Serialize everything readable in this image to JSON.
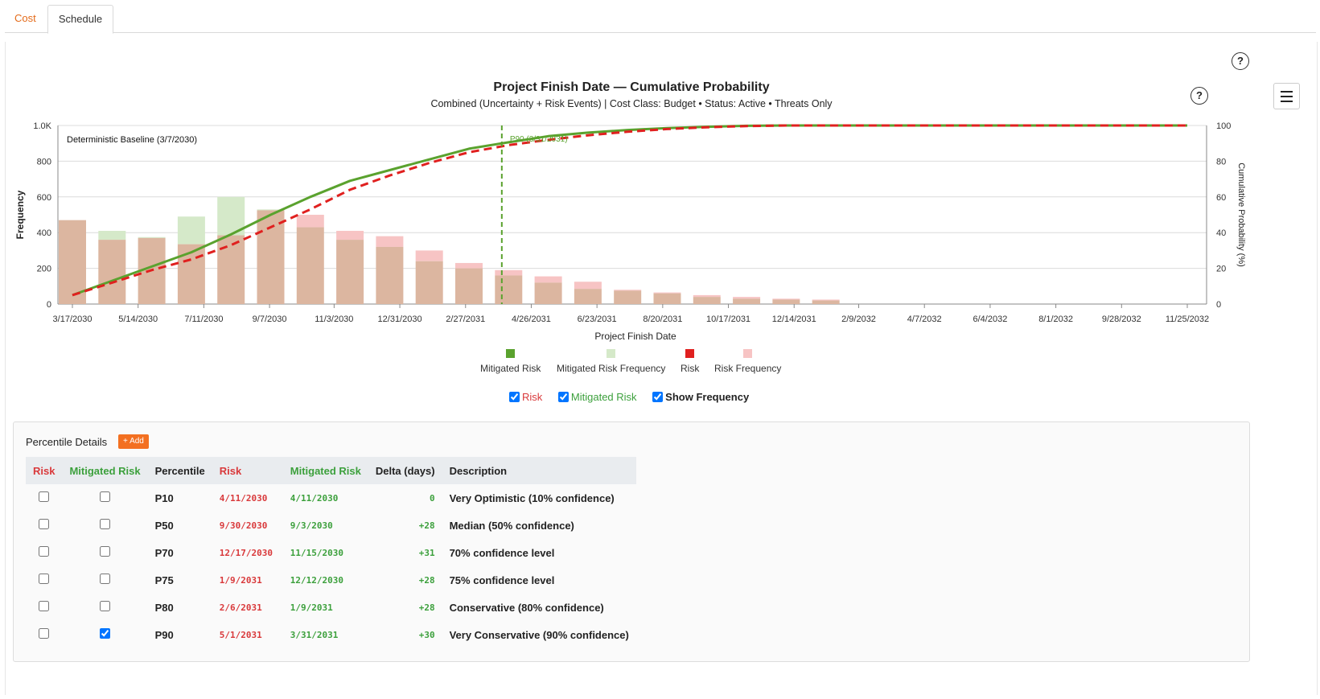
{
  "tabs": [
    {
      "label": "Cost",
      "active": false
    },
    {
      "label": "Schedule",
      "active": true
    }
  ],
  "help_label": "?",
  "chart": {
    "title": "Project Finish Date — Cumulative Probability",
    "subtitle": "Combined (Uncertainty + Risk Events) | Cost Class: Budget  •  Status: Active  •  Threats Only"
  },
  "chart_data": {
    "type": "bar",
    "title": "Project Finish Date — Cumulative Probability",
    "subtitle": "Combined (Uncertainty + Risk Events) | Cost Class: Budget  •  Status: Active  •  Threats Only",
    "xlabel": "Project Finish Date",
    "ylabel": "Frequency",
    "y2label": "Cumulative Probability (%)",
    "ylim": [
      0,
      1000
    ],
    "y2lim": [
      0,
      100
    ],
    "y_ticks": [
      "0",
      "200",
      "400",
      "600",
      "800",
      "1.0K"
    ],
    "y2_ticks": [
      "0",
      "20",
      "40",
      "60",
      "80",
      "100"
    ],
    "x_range": [
      "3/17/2030",
      "11/25/2032"
    ],
    "x_ticks": [
      "3/17/2030",
      "5/14/2030",
      "7/11/2030",
      "9/7/2030",
      "11/3/2030",
      "12/31/2030",
      "2/27/2031",
      "4/26/2031",
      "6/23/2031",
      "8/20/2031",
      "10/17/2031",
      "12/14/2031",
      "2/9/2032",
      "4/7/2032",
      "6/4/2032",
      "8/1/2032",
      "9/28/2032",
      "11/25/2032"
    ],
    "grid": true,
    "bin_dates": [
      "3/17/2030",
      "4/21/2030",
      "5/26/2030",
      "6/30/2030",
      "8/4/2030",
      "9/8/2030",
      "10/13/2030",
      "11/17/2030",
      "12/22/2030",
      "1/26/2031",
      "3/2/2031",
      "4/6/2031",
      "5/11/2031",
      "6/15/2031",
      "7/20/2031",
      "8/24/2031",
      "9/28/2031",
      "11/2/2031",
      "12/7/2031",
      "1/11/2032"
    ],
    "series": [
      {
        "name": "Mitigated Risk",
        "kind": "line",
        "color": "#5aa22e",
        "x": [
          "3/17/2030",
          "4/21/2030",
          "5/26/2030",
          "6/30/2030",
          "8/4/2030",
          "9/8/2030",
          "10/13/2030",
          "11/17/2030",
          "12/22/2030",
          "1/26/2031",
          "3/2/2031",
          "3/31/2031",
          "5/11/2031",
          "6/15/2031",
          "7/20/2031",
          "8/24/2031",
          "9/28/2031",
          "11/2/2031",
          "12/7/2031",
          "11/25/2032"
        ],
        "values": [
          5,
          13,
          21,
          29,
          39,
          50,
          60,
          69,
          75,
          81,
          87,
          90,
          94,
          96,
          97.5,
          98.5,
          99.3,
          99.8,
          100,
          100
        ]
      },
      {
        "name": "Mitigated Risk Frequency",
        "kind": "bar",
        "color": "#d5e9c9",
        "values": [
          470,
          410,
          375,
          490,
          600,
          530,
          430,
          360,
          320,
          240,
          200,
          160,
          120,
          85,
          75,
          60,
          40,
          30,
          25,
          20
        ]
      },
      {
        "name": "Risk",
        "kind": "line",
        "color": "#e0201f",
        "x": [
          "3/17/2030",
          "4/21/2030",
          "5/26/2030",
          "6/30/2030",
          "8/4/2030",
          "9/8/2030",
          "10/13/2030",
          "11/17/2030",
          "12/22/2030",
          "1/26/2031",
          "3/2/2031",
          "4/6/2031",
          "5/11/2031",
          "6/15/2031",
          "7/20/2031",
          "8/24/2031",
          "9/28/2031",
          "11/2/2031",
          "12/7/2031",
          "11/25/2032"
        ],
        "values": [
          5,
          12,
          19,
          25,
          33,
          43,
          53,
          64,
          72,
          79,
          85,
          89,
          92,
          94.5,
          96.5,
          98,
          99,
          99.7,
          100,
          100
        ]
      },
      {
        "name": "Risk Frequency",
        "kind": "bar",
        "color": "#f7c4c4",
        "values": [
          470,
          360,
          370,
          335,
          385,
          525,
          500,
          410,
          380,
          300,
          230,
          190,
          155,
          125,
          80,
          65,
          50,
          40,
          30,
          25
        ]
      }
    ],
    "annotations": [
      {
        "text": "Deterministic Baseline (3/7/2030)"
      },
      {
        "text": "P90 (3/31/2031)",
        "x": "3/31/2031",
        "color": "#5aa22e"
      }
    ],
    "legend_position": "bottom"
  },
  "legend": [
    {
      "label": "Mitigated Risk",
      "color": "#5aa22e"
    },
    {
      "label": "Mitigated Risk Frequency",
      "color": "#d5e9c9"
    },
    {
      "label": "Risk",
      "color": "#e0201f"
    },
    {
      "label": "Risk Frequency",
      "color": "#f7c4c4"
    }
  ],
  "toggles": [
    {
      "label": "Risk",
      "checked": true
    },
    {
      "label": "Mitigated Risk",
      "checked": true
    },
    {
      "label": "Show Frequency",
      "checked": true
    }
  ],
  "percentile_details": {
    "title": "Percentile Details",
    "add_label": "+ Add",
    "headers": [
      "Risk",
      "Mitigated Risk",
      "Percentile",
      "Risk",
      "Mitigated Risk",
      "Delta (days)",
      "Description"
    ],
    "rows": [
      {
        "risk_checked": false,
        "mit_checked": false,
        "percentile": "P10",
        "risk_date": "4/11/2030",
        "mit_date": "4/11/2030",
        "delta": "0",
        "description": "Very Optimistic (10% confidence)"
      },
      {
        "risk_checked": false,
        "mit_checked": false,
        "percentile": "P50",
        "risk_date": "9/30/2030",
        "mit_date": "9/3/2030",
        "delta": "+28",
        "description": "Median (50% confidence)"
      },
      {
        "risk_checked": false,
        "mit_checked": false,
        "percentile": "P70",
        "risk_date": "12/17/2030",
        "mit_date": "11/15/2030",
        "delta": "+31",
        "description": "70% confidence level"
      },
      {
        "risk_checked": false,
        "mit_checked": false,
        "percentile": "P75",
        "risk_date": "1/9/2031",
        "mit_date": "12/12/2030",
        "delta": "+28",
        "description": "75% confidence level"
      },
      {
        "risk_checked": false,
        "mit_checked": false,
        "percentile": "P80",
        "risk_date": "2/6/2031",
        "mit_date": "1/9/2031",
        "delta": "+28",
        "description": "Conservative (80% confidence)"
      },
      {
        "risk_checked": false,
        "mit_checked": true,
        "percentile": "P90",
        "risk_date": "5/1/2031",
        "mit_date": "3/31/2031",
        "delta": "+30",
        "description": "Very Conservative (90% confidence)"
      }
    ]
  }
}
